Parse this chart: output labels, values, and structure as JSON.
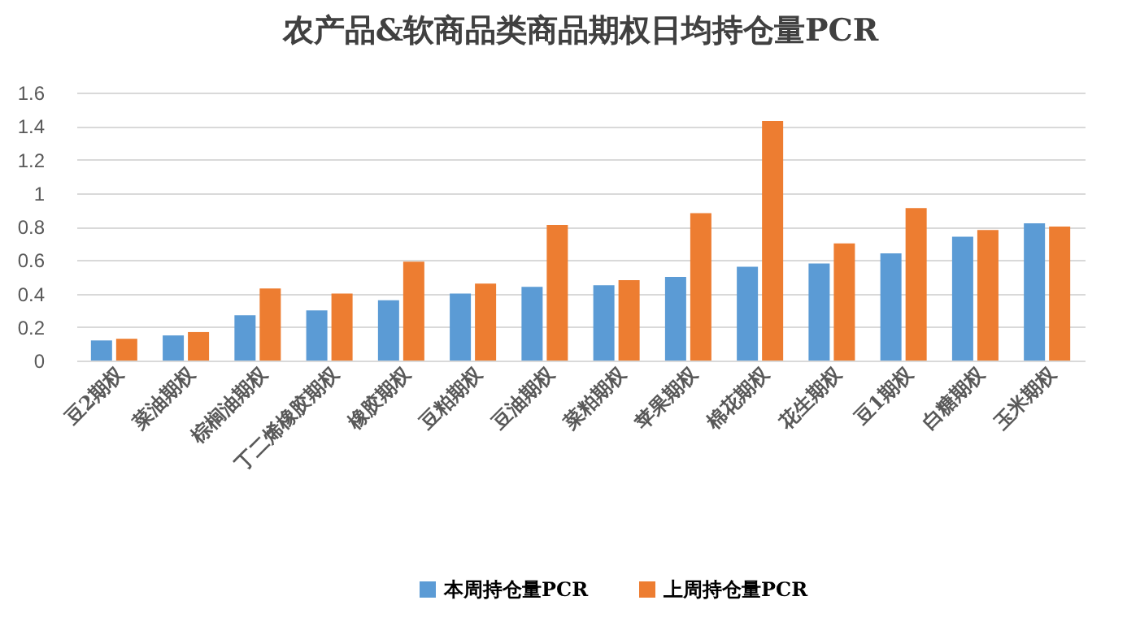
{
  "chart_data": {
    "type": "bar",
    "title": "农产品&软商品类商品期权日均持仓量PCR",
    "categories": [
      "豆2期权",
      "菜油期权",
      "棕榈油期权",
      "丁二烯橡胶期权",
      "橡胶期权",
      "豆粕期权",
      "豆油期权",
      "菜粕期权",
      "苹果期权",
      "棉花期权",
      "花生期权",
      "豆1期权",
      "白糖期权",
      "玉米期权"
    ],
    "series": [
      {
        "name": "本周持仓量PCR",
        "color": "#5b9bd5",
        "values": [
          0.12,
          0.15,
          0.27,
          0.3,
          0.36,
          0.4,
          0.44,
          0.45,
          0.5,
          0.56,
          0.58,
          0.64,
          0.74,
          0.82
        ]
      },
      {
        "name": "上周持仓量PCR",
        "color": "#ed7d31",
        "values": [
          0.13,
          0.17,
          0.43,
          0.4,
          0.59,
          0.46,
          0.81,
          0.48,
          0.88,
          1.43,
          0.7,
          0.91,
          0.78,
          0.8
        ]
      }
    ],
    "ylim": [
      0,
      1.6
    ],
    "yticks": [
      {
        "value": 0,
        "label": "0"
      },
      0.2,
      0.4,
      0.6,
      0.8,
      {
        "value": 1,
        "label": "1"
      },
      1.2,
      1.4,
      1.6
    ],
    "grid": "y",
    "legend": "bottom"
  }
}
